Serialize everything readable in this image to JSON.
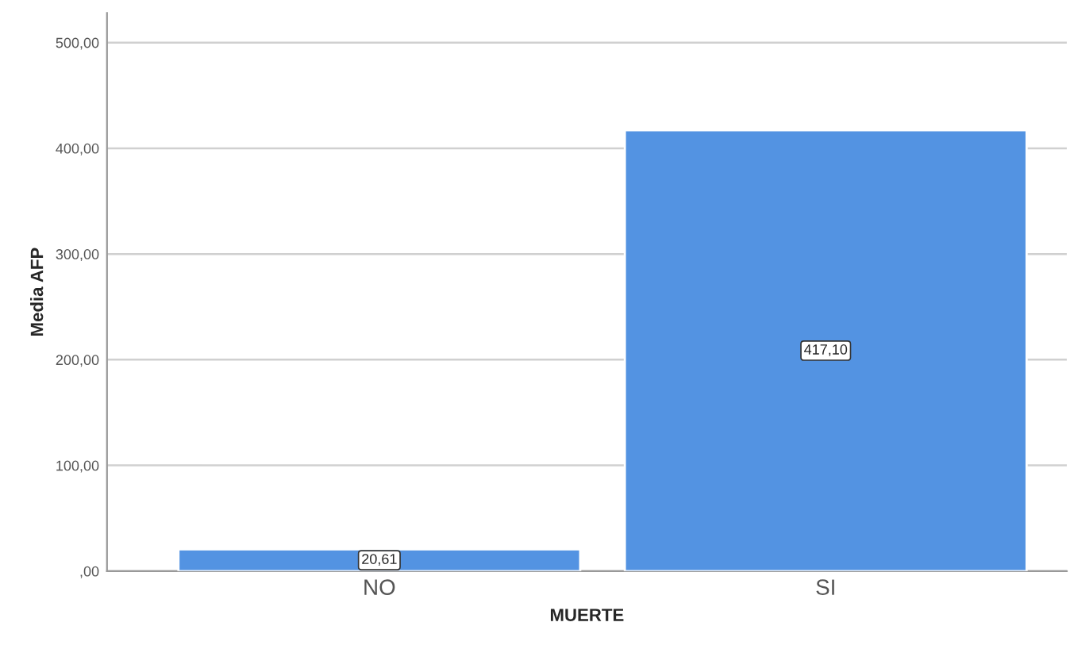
{
  "chart_data": {
    "type": "bar",
    "xlabel": "MUERTE",
    "ylabel": "Media AFP",
    "categories": [
      "NO",
      "SI"
    ],
    "series": [
      {
        "color": "#5393e2",
        "values": [
          20.61,
          417.1
        ],
        "value_labels": [
          "20,61",
          "417,10"
        ]
      }
    ],
    "ylim": [
      0,
      528
    ],
    "yticks": [
      {
        "value": 0,
        "label": ",00"
      },
      {
        "value": 100,
        "label": "100,00"
      },
      {
        "value": 200,
        "label": "200,00"
      },
      {
        "value": 300,
        "label": "300,00"
      },
      {
        "value": 400,
        "label": "400,00"
      },
      {
        "value": 500,
        "label": "500,00"
      }
    ],
    "grid": "y",
    "legend": false
  }
}
